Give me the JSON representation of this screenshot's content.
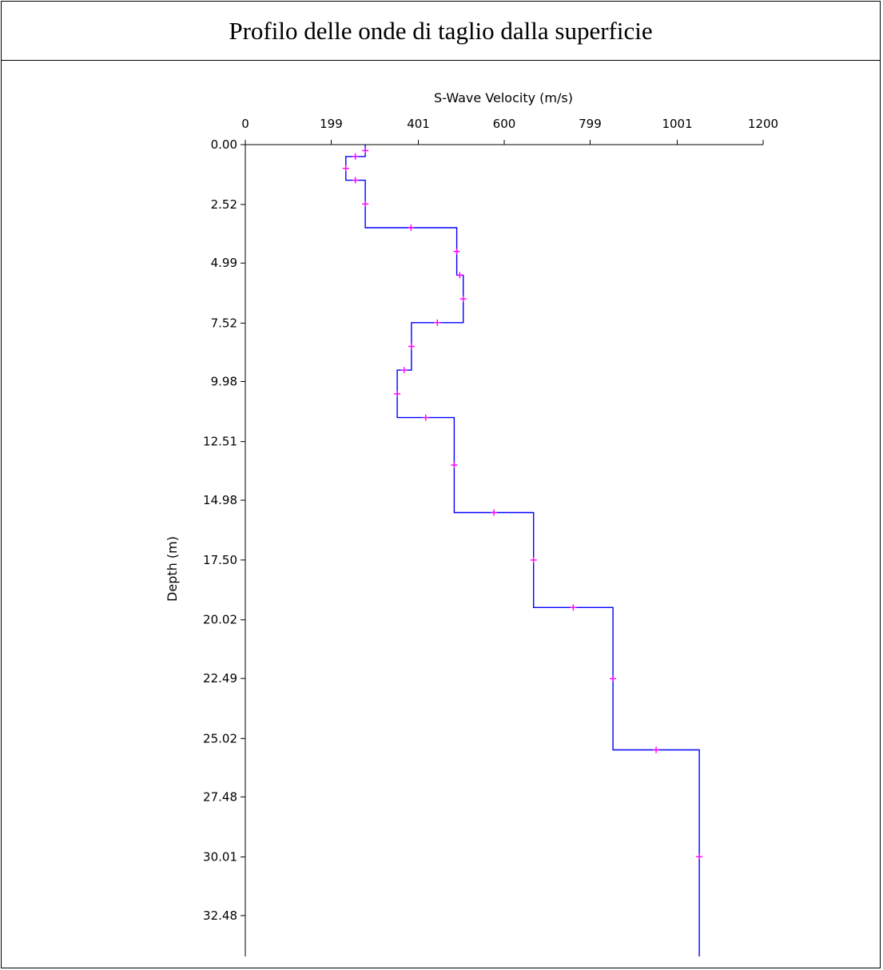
{
  "header": {
    "title": "Profilo delle onde di taglio dalla superficie"
  },
  "chart_data": {
    "type": "line",
    "title": "Profilo delle onde di taglio dalla superficie",
    "xlabel": "S-Wave Velocity (m/s)",
    "ylabel": "Depth (m)",
    "x_ticks": [
      "0",
      "199",
      "401",
      "600",
      "799",
      "1001",
      "1200"
    ],
    "y_ticks": [
      "0.00",
      "2.52",
      "4.99",
      "7.52",
      "9.98",
      "12.51",
      "14.98",
      "17.50",
      "20.02",
      "22.49",
      "25.02",
      "27.48",
      "30.01",
      "32.48"
    ],
    "xlim": [
      0,
      1200
    ],
    "ylim": [
      0,
      34.2
    ],
    "y_inverted": true,
    "x_axis_position": "top",
    "grid": false,
    "colors": {
      "profile": "#0000ff",
      "markers": "#ff00ff"
    },
    "series": [
      {
        "profile": [
          [
            278,
            0
          ],
          [
            278,
            0.5
          ],
          [
            233,
            0.5
          ],
          [
            233,
            1.5
          ],
          [
            278,
            1.5
          ],
          [
            278,
            3.5
          ],
          [
            490,
            3.5
          ],
          [
            490,
            5.5
          ],
          [
            505,
            5.5
          ],
          [
            505,
            7.5
          ],
          [
            385,
            7.5
          ],
          [
            385,
            9.5
          ],
          [
            352,
            9.5
          ],
          [
            352,
            11.5
          ],
          [
            484,
            11.5
          ],
          [
            484,
            15.5
          ],
          [
            668,
            15.5
          ],
          [
            668,
            19.5
          ],
          [
            852,
            19.5
          ],
          [
            852,
            25.5
          ],
          [
            1052,
            25.5
          ],
          [
            1052,
            34.2
          ]
        ],
        "points": [
          [
            278,
            0.25
          ],
          [
            255,
            0.5
          ],
          [
            233,
            1.0
          ],
          [
            255,
            1.5
          ],
          [
            278,
            2.5
          ],
          [
            384,
            3.5
          ],
          [
            490,
            4.5
          ],
          [
            497,
            5.5
          ],
          [
            505,
            6.5
          ],
          [
            445,
            7.5
          ],
          [
            385,
            8.5
          ],
          [
            368,
            9.5
          ],
          [
            352,
            10.5
          ],
          [
            418,
            11.5
          ],
          [
            484,
            13.5
          ],
          [
            576,
            15.5
          ],
          [
            668,
            17.5
          ],
          [
            760,
            19.5
          ],
          [
            852,
            22.5
          ],
          [
            952,
            25.5
          ],
          [
            1052,
            30.0
          ]
        ]
      }
    ]
  }
}
